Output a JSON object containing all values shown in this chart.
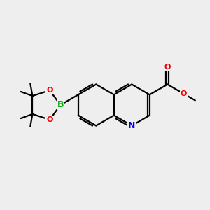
{
  "bg_color": "#eeeeee",
  "atom_colors": {
    "C": "#000000",
    "N": "#0000ee",
    "O": "#ee0000",
    "B": "#00aa00"
  },
  "bond_lw": 1.6,
  "font_size_atom": 9,
  "fig_size": [
    3.0,
    3.0
  ],
  "dpi": 100,
  "bl": 1.0
}
